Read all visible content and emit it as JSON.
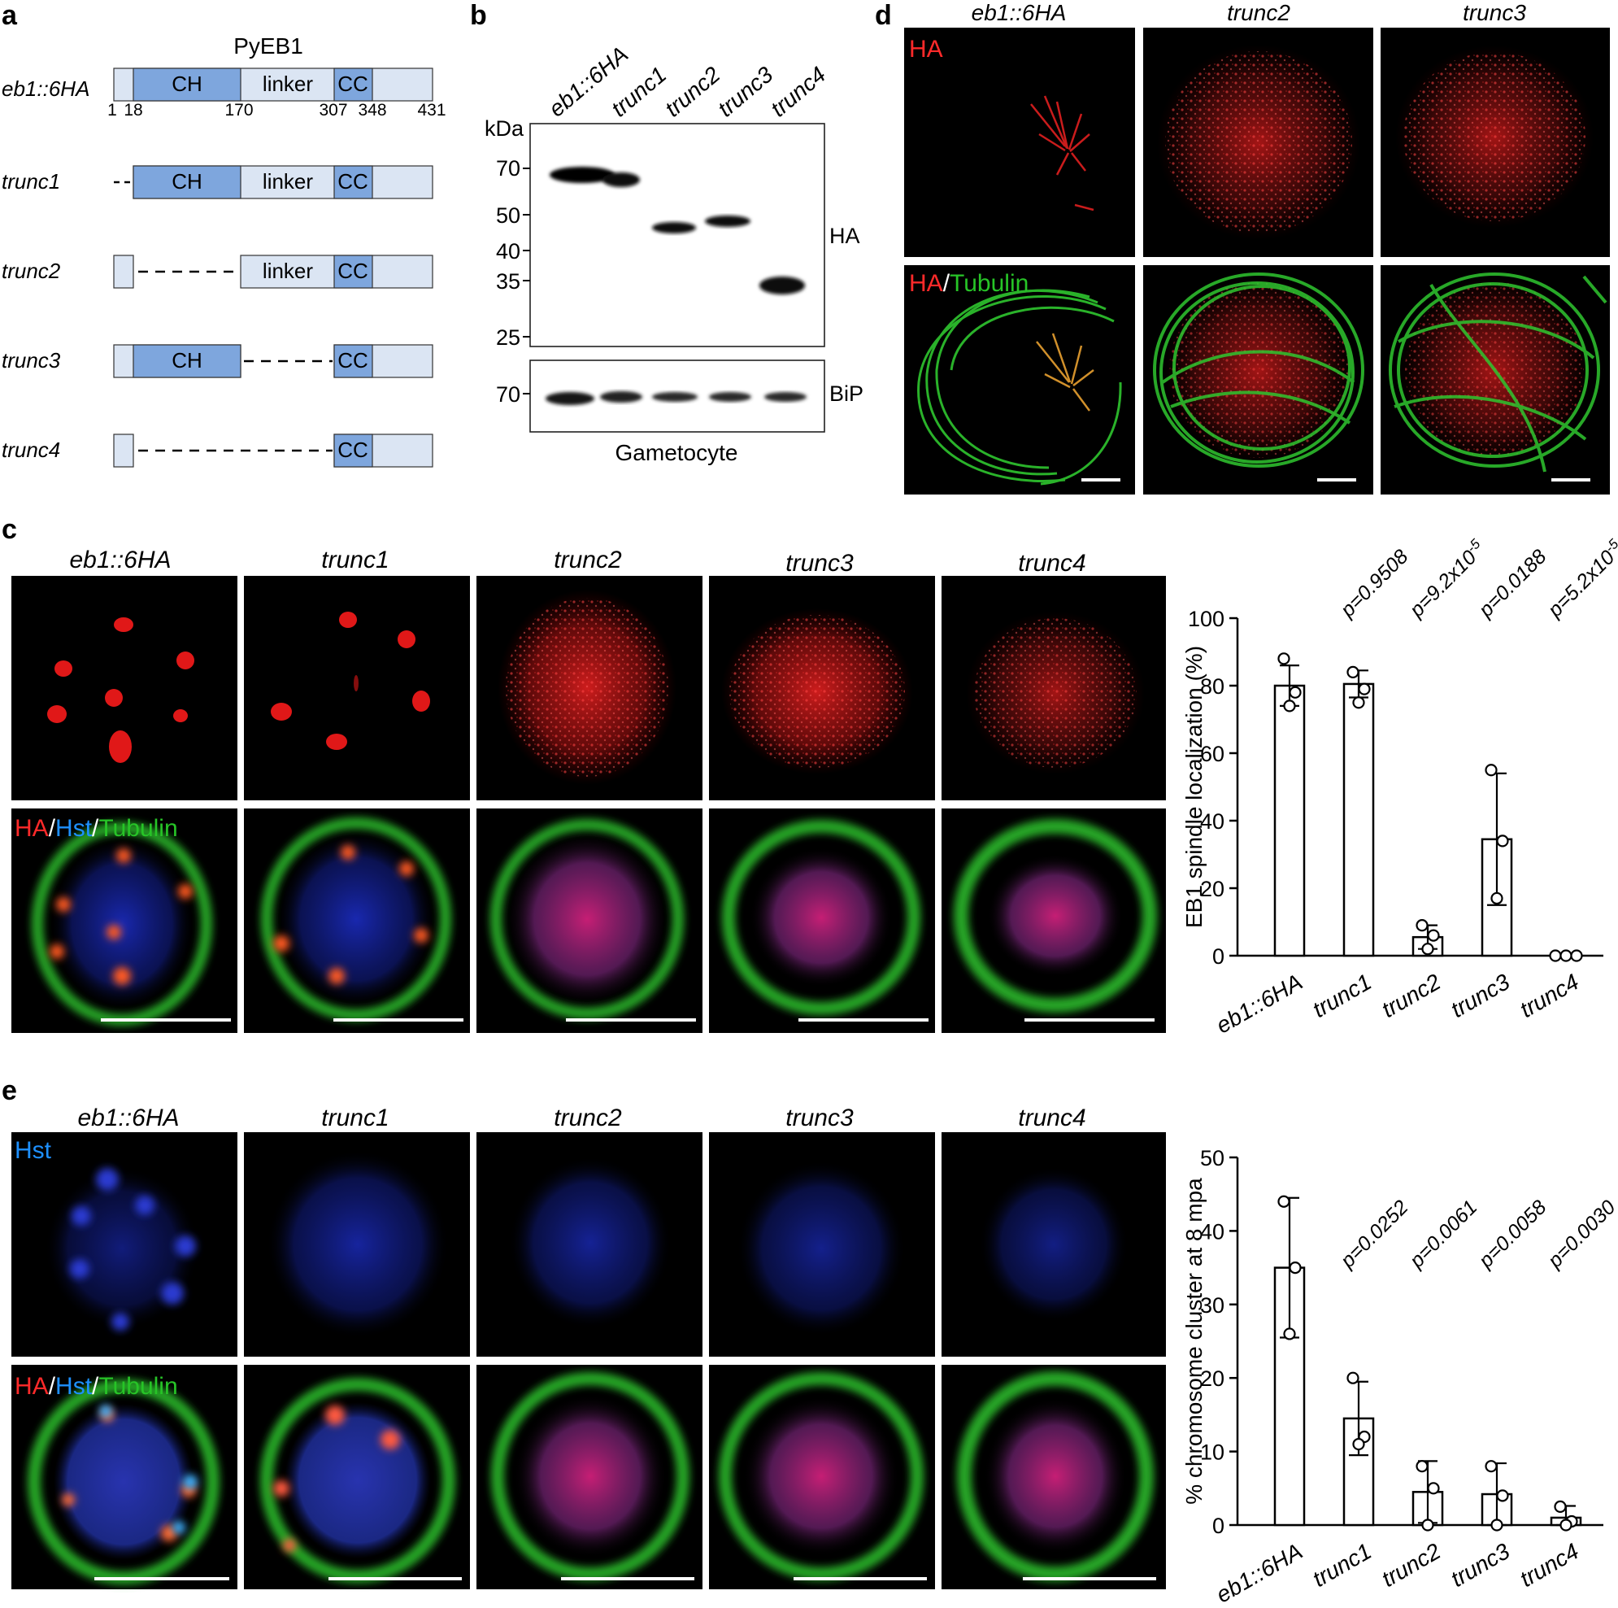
{
  "panel_labels": {
    "a": "a",
    "b": "b",
    "c": "c",
    "d": "d",
    "e": "e"
  },
  "panel_a": {
    "protein_name": "PyEB1",
    "full_label": "eb1::6HA",
    "domains": {
      "ch": "CH",
      "linker": "linker",
      "cc": "CC"
    },
    "residues": [
      "1",
      "18",
      "170",
      "307",
      "348",
      "431"
    ],
    "constructs": [
      {
        "label": "trunc1"
      },
      {
        "label": "trunc2"
      },
      {
        "label": "trunc3"
      },
      {
        "label": "trunc4"
      }
    ],
    "colors": {
      "domain": "#7ea6dd",
      "base": "#dbe5f3"
    }
  },
  "panel_b": {
    "lanes": [
      "eb1::6HA",
      "trunc1",
      "trunc2",
      "trunc3",
      "trunc4"
    ],
    "kda_label": "kDa",
    "markers": [
      "70",
      "50",
      "40",
      "35",
      "25"
    ],
    "bip_marker": "70",
    "ha_label": "HA",
    "bip_label": "BiP",
    "sample_label": "Gametocyte"
  },
  "panel_c": {
    "columns": [
      "eb1::6HA",
      "trunc1",
      "trunc2",
      "trunc3",
      "trunc4"
    ],
    "row1_label": "HA",
    "row2_label": {
      "ha": "HA",
      "slash1": "/",
      "hst": "Hst",
      "slash2": "/",
      "tub": "Tubulin"
    },
    "colors": {
      "ha": "#ff2a2a",
      "hst": "#1e90ff",
      "tub": "#27c427"
    }
  },
  "panel_d": {
    "columns": [
      "eb1::6HA",
      "trunc2",
      "trunc3"
    ],
    "row1_label": "HA",
    "row2_label": {
      "ha": "HA",
      "slash": "/",
      "tub": "Tubulin"
    }
  },
  "panel_e": {
    "columns": [
      "eb1::6HA",
      "trunc1",
      "trunc2",
      "trunc3",
      "trunc4"
    ],
    "row1_label": "Hst",
    "row2_label": {
      "ha": "HA",
      "slash1": "/",
      "hst": "Hst",
      "slash2": "/",
      "tub": "Tubulin"
    }
  },
  "chart_data": [
    {
      "type": "bar",
      "categories": [
        "eb1::6HA",
        "trunc1",
        "trunc2",
        "trunc3",
        "trunc4"
      ],
      "values": [
        80,
        80.5,
        5.5,
        34.5,
        0
      ],
      "error": [
        6,
        4,
        3.5,
        19.5,
        0
      ],
      "points": [
        [
          88,
          78,
          74
        ],
        [
          84,
          79,
          75
        ],
        [
          9,
          6,
          2
        ],
        [
          55,
          34,
          17
        ],
        [
          0,
          0,
          0
        ]
      ],
      "pvalues": [
        "",
        "p=0.9508",
        "p=9.2x10-5",
        "p=0.0188",
        "p=5.2x10-5"
      ],
      "ylabel": "EB1 spindle localization (%)",
      "yticks": [
        0,
        20,
        40,
        60,
        80,
        100
      ],
      "ylim": [
        0,
        100
      ]
    },
    {
      "type": "bar",
      "categories": [
        "eb1::6HA",
        "trunc1",
        "trunc2",
        "trunc3",
        "trunc4"
      ],
      "values": [
        35,
        14.5,
        4.5,
        4.2,
        1
      ],
      "error": [
        9.5,
        5,
        4.2,
        4.2,
        1.6
      ],
      "points": [
        [
          44,
          35,
          26
        ],
        [
          20,
          12,
          11
        ],
        [
          8,
          5,
          0
        ],
        [
          8,
          4,
          0
        ],
        [
          2.5,
          0.5,
          0
        ]
      ],
      "pvalues": [
        "",
        "p=0.0252",
        "p=0.0061",
        "p=0.0058",
        "p=0.0030"
      ],
      "ylabel": "% chromosome cluster at 8 mpa",
      "yticks": [
        0,
        10,
        20,
        30,
        40,
        50
      ],
      "ylim": [
        0,
        50
      ]
    }
  ]
}
